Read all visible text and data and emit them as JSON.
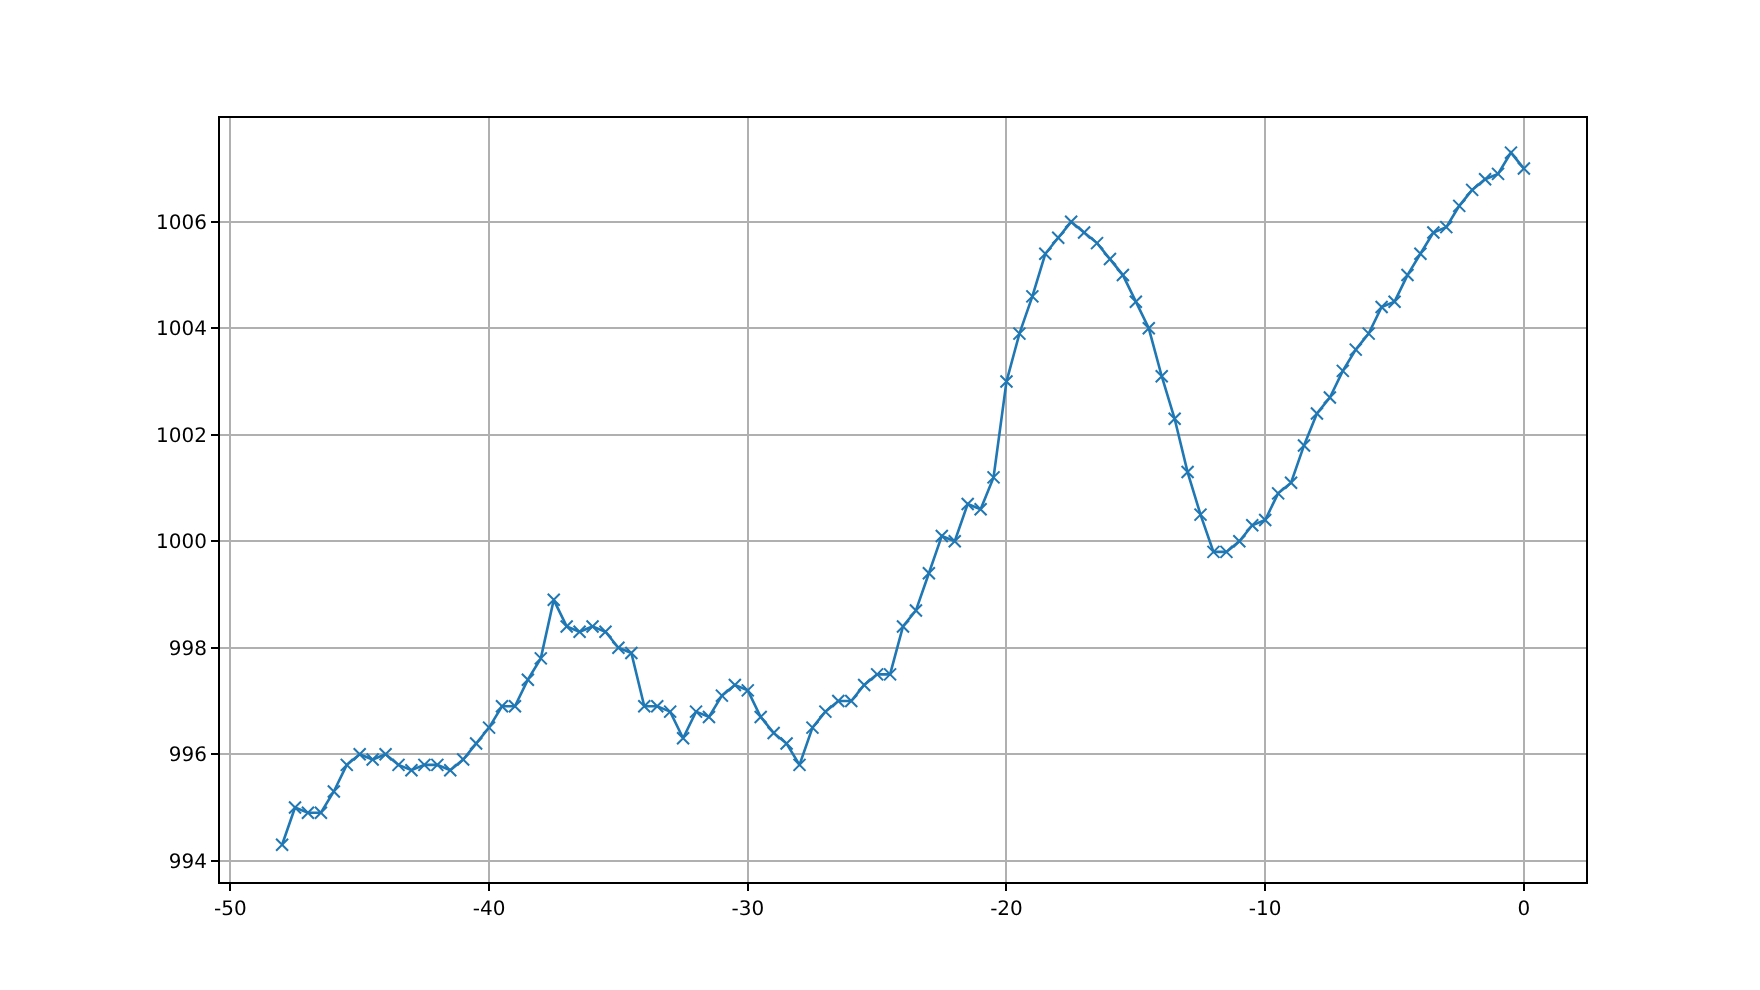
{
  "chart_data": {
    "type": "line",
    "marker": "cross",
    "line_style": "solid",
    "grid": true,
    "xlim": [
      -50.4,
      2.4
    ],
    "xticks": [
      -50,
      -40,
      -30,
      -20,
      -10,
      0
    ],
    "ylim": [
      993.6,
      1007.95
    ],
    "yticks": [
      994,
      996,
      998,
      1000,
      1002,
      1004,
      1006
    ],
    "x": [
      -48,
      -47.5,
      -47,
      -46.5,
      -46,
      -45.5,
      -45,
      -44.5,
      -44,
      -43.5,
      -43,
      -42.5,
      -42,
      -41.5,
      -41,
      -40.5,
      -40,
      -39.5,
      -39,
      -38.5,
      -38,
      -37.5,
      -37,
      -36.5,
      -36,
      -35.5,
      -35,
      -34.5,
      -34,
      -33.5,
      -33,
      -32.5,
      -32,
      -31.5,
      -31,
      -30.5,
      -30,
      -29.5,
      -29,
      -28.5,
      -28,
      -27.5,
      -27,
      -26.5,
      -26,
      -25.5,
      -25,
      -24.5,
      -24,
      -23.5,
      -23,
      -22.5,
      -22,
      -21.5,
      -21,
      -20.5,
      -20,
      -19.5,
      -19,
      -18.5,
      -18,
      -17.5,
      -17,
      -16.5,
      -16,
      -15.5,
      -15,
      -14.5,
      -14,
      -13.5,
      -13,
      -12.5,
      -12,
      -11.5,
      -11,
      -10.5,
      -10,
      -9.5,
      -9,
      -8.5,
      -8,
      -7.5,
      -7,
      -6.5,
      -6,
      -5.5,
      -5,
      -4.5,
      -4,
      -3.5,
      -3,
      -2.5,
      -2,
      -1.5,
      -1,
      -0.5,
      0
    ],
    "series": [
      {
        "color": "#1f77b4",
        "values": [
          994.3,
          995.0,
          994.9,
          994.9,
          995.3,
          995.8,
          996.0,
          995.9,
          996.0,
          995.8,
          995.7,
          995.8,
          995.8,
          995.7,
          995.9,
          996.2,
          996.5,
          996.9,
          996.9,
          997.4,
          997.8,
          998.9,
          998.4,
          998.3,
          998.4,
          998.3,
          998.0,
          997.9,
          996.9,
          996.9,
          996.8,
          996.3,
          996.8,
          996.7,
          997.1,
          997.3,
          997.2,
          996.7,
          996.4,
          996.2,
          995.8,
          996.5,
          996.8,
          997.0,
          997.0,
          997.3,
          997.5,
          997.5,
          998.4,
          998.7,
          999.4,
          1000.1,
          1000.0,
          1000.7,
          1000.6,
          1001.2,
          1003.0,
          1003.9,
          1004.6,
          1005.4,
          1005.7,
          1006.0,
          1005.8,
          1005.6,
          1005.3,
          1005.0,
          1004.5,
          1004.0,
          1003.1,
          1002.3,
          1001.3,
          1000.5,
          999.8,
          999.8,
          1000.0,
          1000.3,
          1000.4,
          1000.9,
          1001.1,
          1001.8,
          1002.4,
          1002.7,
          1003.2,
          1003.6,
          1003.9,
          1004.4,
          1004.5,
          1005.0,
          1005.4,
          1005.8,
          1005.9,
          1006.3,
          1006.6,
          1006.8,
          1006.9,
          1007.3,
          1007.0
        ]
      }
    ]
  }
}
